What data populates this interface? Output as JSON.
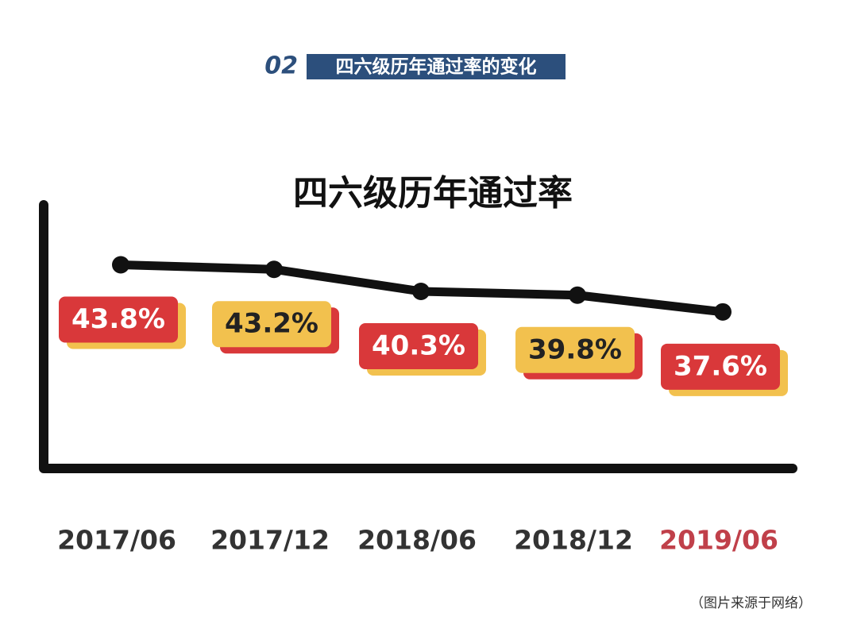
{
  "header": {
    "number": "02",
    "title": "四六级历年通过率的变化"
  },
  "chart_data": {
    "type": "line",
    "title": "四六级历年通过率",
    "categories": [
      "2017/06",
      "2017/12",
      "2018/06",
      "2018/12",
      "2019/06"
    ],
    "values": [
      43.8,
      43.2,
      40.3,
      39.8,
      37.6
    ],
    "value_labels": [
      "43.8%",
      "43.2%",
      "40.3%",
      "39.8%",
      "37.6%"
    ],
    "color": "#111111",
    "label_colors": [
      "#d9383a",
      "#f2c14e",
      "#d9383a",
      "#f2c14e",
      "#d9383a"
    ],
    "category_colors": [
      "#333333",
      "#333333",
      "#333333",
      "#333333",
      "#c0404a"
    ],
    "ylim": [
      17,
      52
    ]
  },
  "source": "（图片来源于网络）"
}
